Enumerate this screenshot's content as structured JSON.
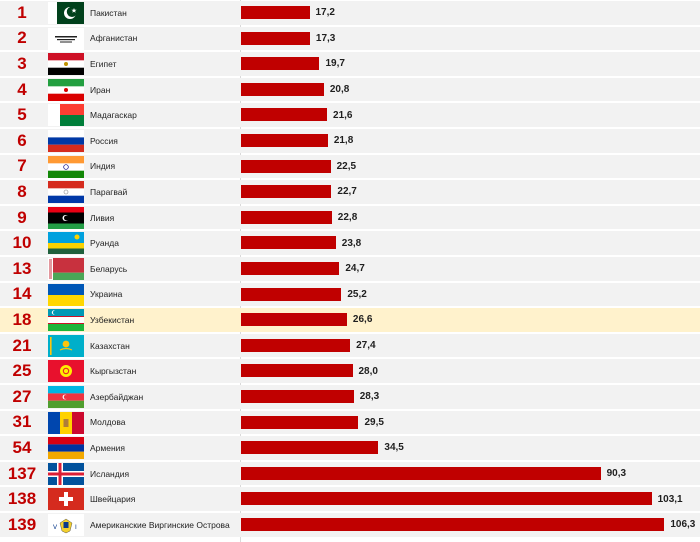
{
  "chart_data": {
    "type": "bar",
    "orientation": "horizontal",
    "bar_color": "#c00000",
    "highlight_color": "#fff2cc",
    "rank_color": "#c00000",
    "highlighted_category": "Узбекистан",
    "xlim": [
      0,
      115
    ],
    "rows": [
      {
        "rank": "1",
        "country": "Пакистан",
        "value": 17.2,
        "label": "17,2",
        "flag": "pakistan-flag-icon"
      },
      {
        "rank": "2",
        "country": "Афганистан",
        "value": 17.3,
        "label": "17,3",
        "flag": "afghanistan-flag-icon"
      },
      {
        "rank": "3",
        "country": "Египет",
        "value": 19.7,
        "label": "19,7",
        "flag": "egypt-flag-icon"
      },
      {
        "rank": "4",
        "country": "Иран",
        "value": 20.8,
        "label": "20,8",
        "flag": "iran-flag-icon"
      },
      {
        "rank": "5",
        "country": "Мадагаскар",
        "value": 21.6,
        "label": "21,6",
        "flag": "madagascar-flag-icon"
      },
      {
        "rank": "6",
        "country": "Россия",
        "value": 21.8,
        "label": "21,8",
        "flag": "russia-flag-icon"
      },
      {
        "rank": "7",
        "country": "Индия",
        "value": 22.5,
        "label": "22,5",
        "flag": "india-flag-icon"
      },
      {
        "rank": "8",
        "country": "Парагвай",
        "value": 22.7,
        "label": "22,7",
        "flag": "paraguay-flag-icon"
      },
      {
        "rank": "9",
        "country": "Ливия",
        "value": 22.8,
        "label": "22,8",
        "flag": "libya-flag-icon"
      },
      {
        "rank": "10",
        "country": "Руанда",
        "value": 23.8,
        "label": "23,8",
        "flag": "rwanda-flag-icon"
      },
      {
        "rank": "13",
        "country": "Беларусь",
        "value": 24.7,
        "label": "24,7",
        "flag": "belarus-flag-icon"
      },
      {
        "rank": "14",
        "country": "Украина",
        "value": 25.2,
        "label": "25,2",
        "flag": "ukraine-flag-icon"
      },
      {
        "rank": "18",
        "country": "Узбекистан",
        "value": 26.6,
        "label": "26,6",
        "flag": "uzbekistan-flag-icon"
      },
      {
        "rank": "21",
        "country": "Казахстан",
        "value": 27.4,
        "label": "27,4",
        "flag": "kazakhstan-flag-icon"
      },
      {
        "rank": "25",
        "country": "Кыргызстан",
        "value": 28.0,
        "label": "28,0",
        "flag": "kyrgyzstan-flag-icon"
      },
      {
        "rank": "27",
        "country": "Азербайджан",
        "value": 28.3,
        "label": "28,3",
        "flag": "azerbaijan-flag-icon"
      },
      {
        "rank": "31",
        "country": "Молдова",
        "value": 29.5,
        "label": "29,5",
        "flag": "moldova-flag-icon"
      },
      {
        "rank": "54",
        "country": "Армения",
        "value": 34.5,
        "label": "34,5",
        "flag": "armenia-flag-icon"
      },
      {
        "rank": "137",
        "country": "Исландия",
        "value": 90.3,
        "label": "90,3",
        "flag": "iceland-flag-icon"
      },
      {
        "rank": "138",
        "country": "Швейцария",
        "value": 103.1,
        "label": "103,1",
        "flag": "switzerland-flag-icon"
      },
      {
        "rank": "139",
        "country": "Американские Виргинские Острова",
        "value": 106.3,
        "label": "106,3",
        "flag": "us-virgin-islands-flag-icon"
      }
    ]
  }
}
